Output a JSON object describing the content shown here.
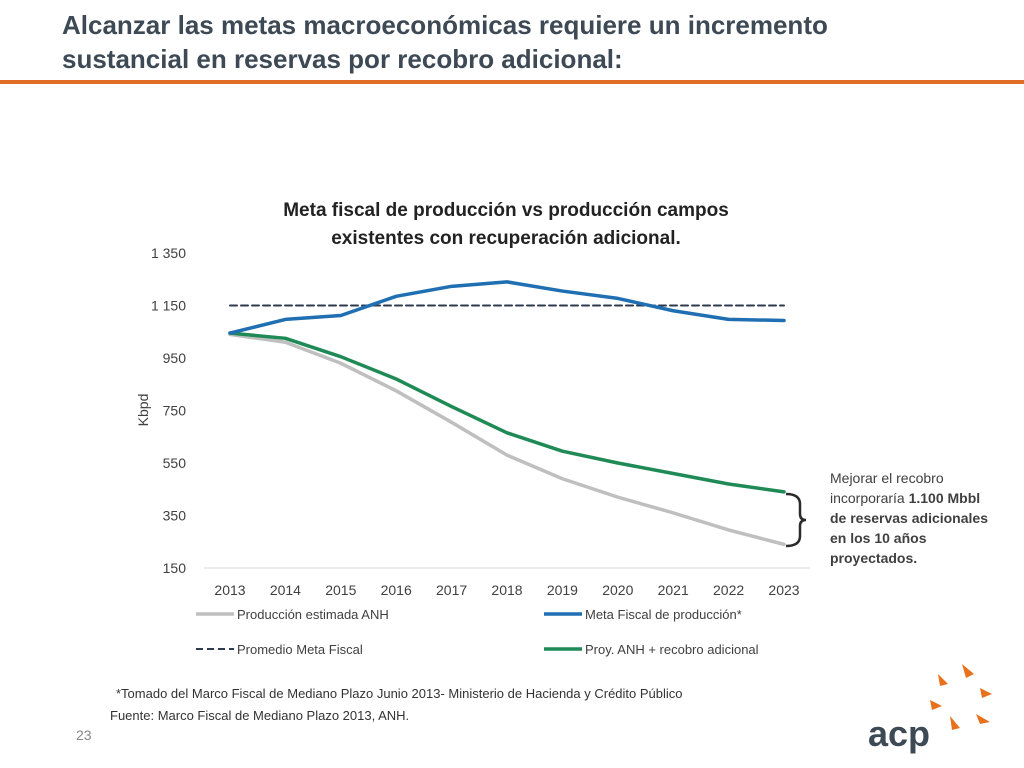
{
  "slide": {
    "title_line1": "Alcanzar las metas macroeconómicas requiere un incremento",
    "title_line2": "sustancial en reservas por recobro adicional:",
    "footnote": "*Tomado del Marco Fiscal de Mediano Plazo Junio 2013- Ministerio de Hacienda y Crédito Público",
    "source": "Fuente: Marco Fiscal de Mediano Plazo 2013, ANH.",
    "page_number": "23",
    "logo_text": "acp"
  },
  "annotation": {
    "line1": "Mejorar el recobro",
    "line2_plain": "incorporaría ",
    "line2_bold": "1.100 Mbbl",
    "line3": "de reservas adicionales",
    "line4": "en los 10 años",
    "line5": "proyectados."
  },
  "colors": {
    "title": "#3d4a55",
    "rule": "#e06e26",
    "gray_series": "#bfbfbf",
    "blue_series": "#1f6fb2",
    "dashed_series": "#2e3b4e",
    "green_series": "#1f8a56",
    "logo_text": "#3d4a55",
    "logo_mark": "#e8711c"
  },
  "chart_data": {
    "type": "line",
    "title_line1": "Meta fiscal de producción vs producción campos",
    "title_line2": "existentes con recuperación adicional.",
    "ylabel": "Kbpd",
    "xlabel": "",
    "ylim": [
      150,
      1350
    ],
    "yticks": [
      150,
      350,
      550,
      750,
      950,
      1150,
      1350
    ],
    "ytick_labels": [
      "150",
      "350",
      "550",
      "750",
      "950",
      "1 150",
      "1 350"
    ],
    "categories": [
      "2013",
      "2014",
      "2015",
      "2016",
      "2017",
      "2018",
      "2019",
      "2020",
      "2021",
      "2022",
      "2023"
    ],
    "series": [
      {
        "name": "Producción estimada ANH",
        "style": "solid",
        "color_key": "gray_series",
        "values": [
          1040,
          1010,
          930,
          825,
          705,
          580,
          490,
          420,
          360,
          295,
          240
        ]
      },
      {
        "name": "Meta Fiscal de producción*",
        "style": "solid",
        "color_key": "blue_series",
        "values": [
          1045,
          1097,
          1112,
          1185,
          1223,
          1240,
          1205,
          1177,
          1130,
          1097,
          1093
        ]
      },
      {
        "name": "Promedio Meta Fiscal",
        "style": "dashed",
        "color_key": "dashed_series",
        "values": [
          1150,
          1150,
          1150,
          1150,
          1150,
          1150,
          1150,
          1150,
          1150,
          1150,
          1150
        ]
      },
      {
        "name": "Proy. ANH + recobro adicional",
        "style": "solid",
        "color_key": "green_series",
        "values": [
          1045,
          1025,
          955,
          870,
          765,
          665,
          595,
          550,
          510,
          470,
          440
        ]
      }
    ],
    "legend_position": "bottom",
    "grid": false
  }
}
